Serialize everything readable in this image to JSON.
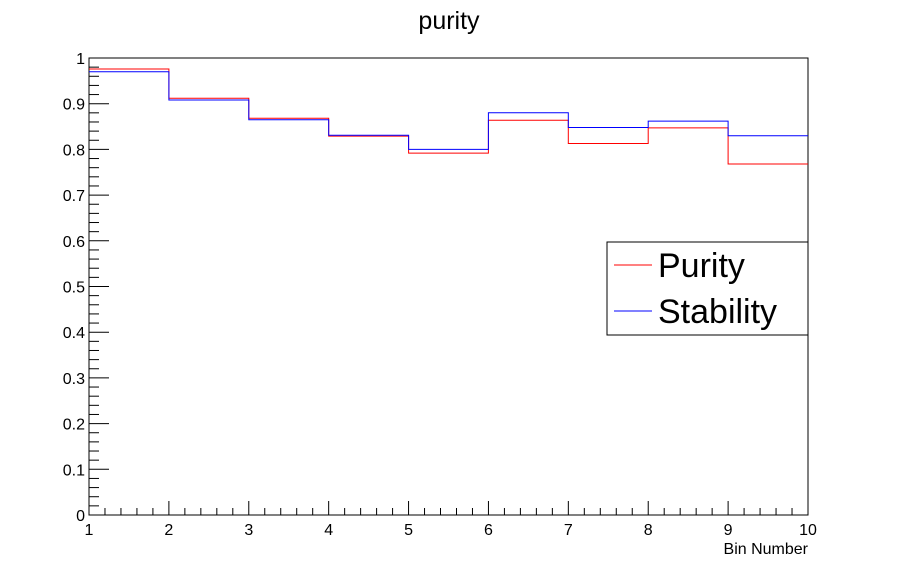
{
  "chart_data": {
    "type": "line",
    "title": "purity",
    "xlabel": "Bin Number",
    "ylabel": "",
    "xlim": [
      1,
      10
    ],
    "ylim": [
      0,
      1
    ],
    "x_ticks": [
      "1",
      "2",
      "3",
      "4",
      "5",
      "6",
      "7",
      "8",
      "9",
      "10"
    ],
    "y_ticks": [
      "0",
      "0.1",
      "0.2",
      "0.3",
      "0.4",
      "0.5",
      "0.6",
      "0.7",
      "0.8",
      "0.9",
      "1"
    ],
    "bin_edges": [
      1,
      2,
      3,
      4,
      5,
      6,
      7,
      8,
      9,
      10
    ],
    "series": [
      {
        "name": "Purity",
        "color": "#ff0000",
        "values": [
          0.976,
          0.912,
          0.868,
          0.829,
          0.792,
          0.864,
          0.813,
          0.847,
          0.768
        ]
      },
      {
        "name": "Stability",
        "color": "#0000ff",
        "values": [
          0.97,
          0.908,
          0.865,
          0.831,
          0.8,
          0.88,
          0.848,
          0.862,
          0.83
        ]
      }
    ],
    "legend_position": "right",
    "grid": false
  }
}
